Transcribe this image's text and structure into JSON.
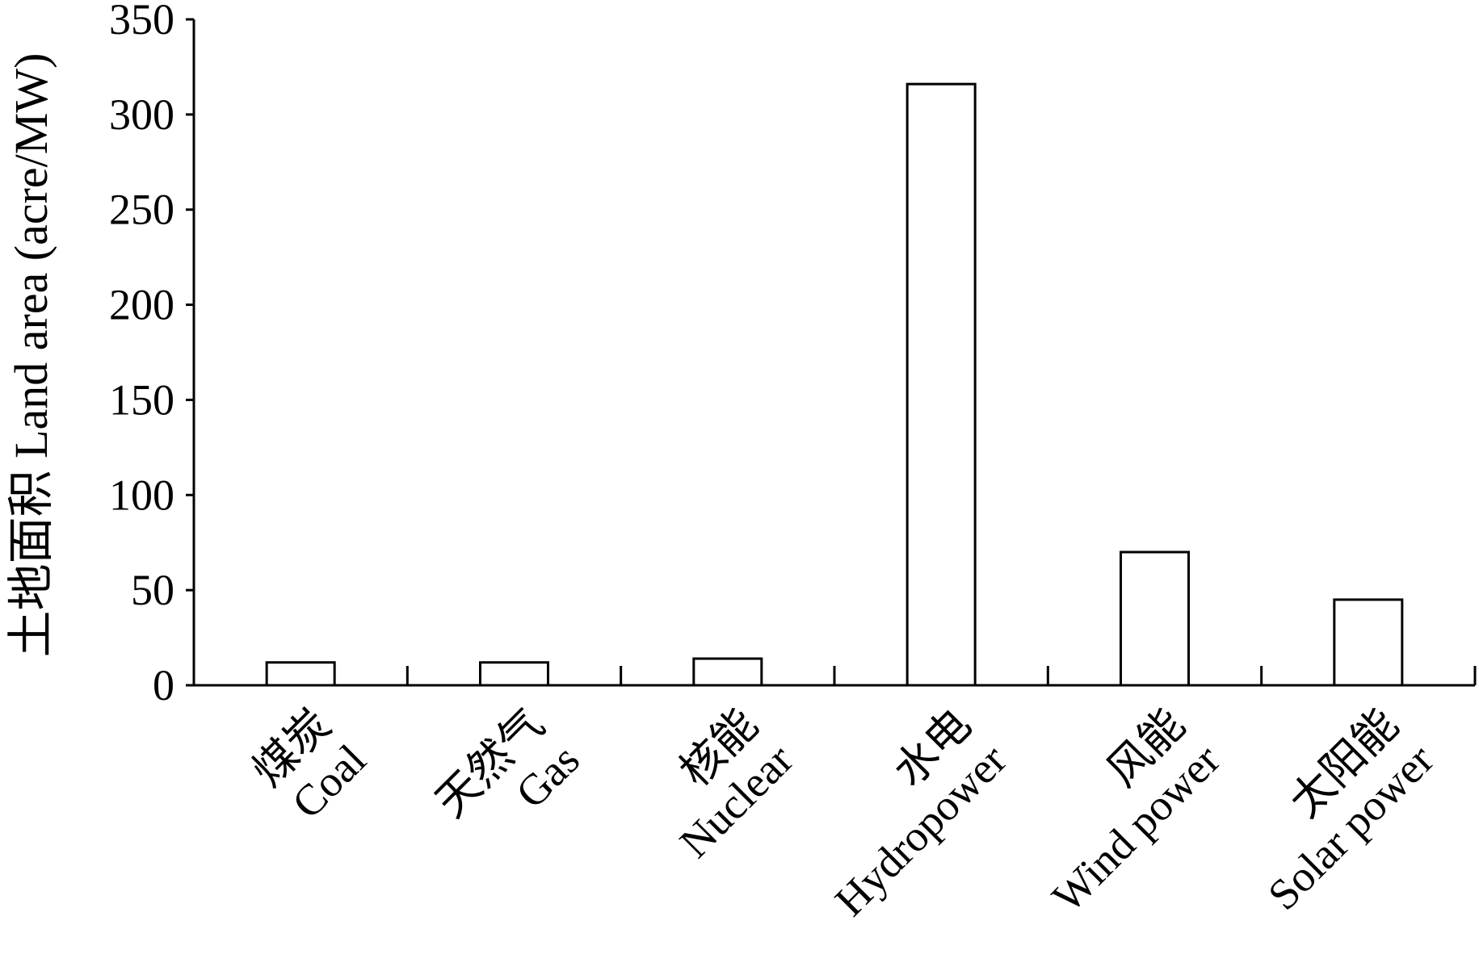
{
  "chart_data": {
    "type": "bar",
    "title": "",
    "xlabel": "",
    "ylabel": "土地面积 Land area (acre/MW)",
    "categories": [
      {
        "zh": "煤炭",
        "en": "Coal"
      },
      {
        "zh": "天然气",
        "en": "Gas"
      },
      {
        "zh": "核能",
        "en": "Nuclear"
      },
      {
        "zh": "水电",
        "en": "Hydropower"
      },
      {
        "zh": "风能",
        "en": "Wind power"
      },
      {
        "zh": "太阳能",
        "en": "Solar power"
      }
    ],
    "values": [
      12,
      12,
      14,
      316,
      70,
      45
    ],
    "ylim": [
      0,
      350
    ],
    "yticks": [
      0,
      50,
      100,
      150,
      200,
      250,
      300,
      350
    ],
    "grid": false,
    "legend": "none",
    "colors": {
      "bar_fill": "#ffffff",
      "bar_stroke": "#000000",
      "axis": "#000000"
    }
  }
}
